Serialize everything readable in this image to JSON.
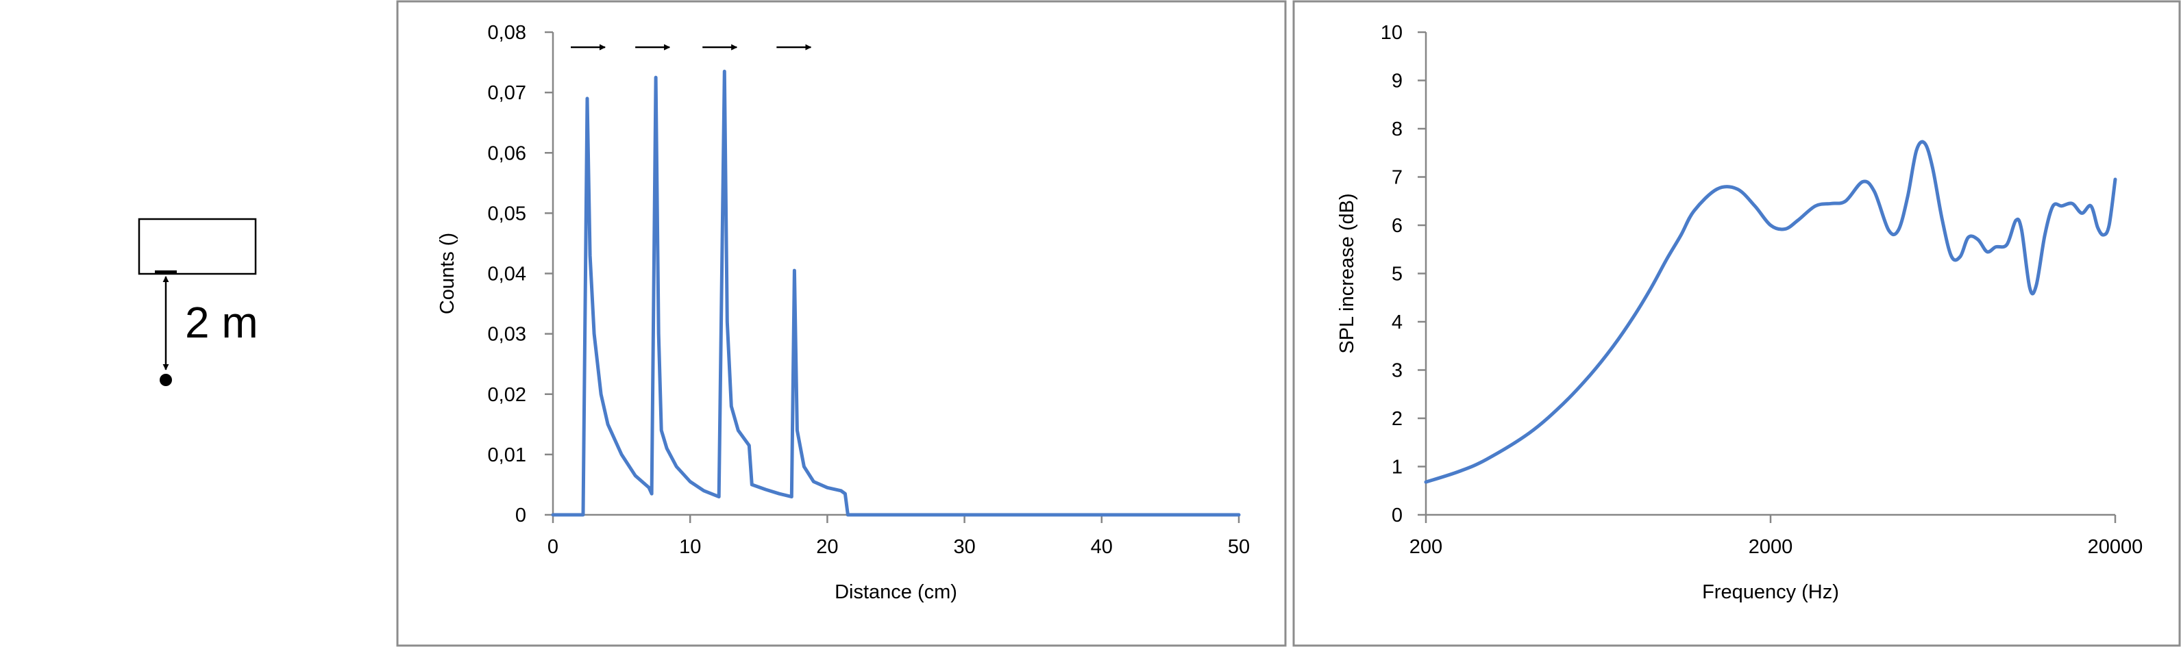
{
  "diagram": {
    "distance_label": "2 m"
  },
  "chart_data": [
    {
      "type": "line",
      "title": "",
      "xlabel": "Distance (cm)",
      "ylabel": "Counts ()",
      "xlim": [
        0,
        50
      ],
      "ylim": [
        0,
        0.08
      ],
      "x_ticks": [
        0,
        10,
        20,
        30,
        40,
        50
      ],
      "x_tick_labels": [
        "0",
        "10",
        "20",
        "30",
        "40",
        "50"
      ],
      "y_ticks": [
        0,
        0.01,
        0.02,
        0.03,
        0.04,
        0.05,
        0.06,
        0.07,
        0.08
      ],
      "y_tick_labels": [
        "0",
        "0,01",
        "0,02",
        "0,03",
        "0,04",
        "0,05",
        "0,06",
        "0,07",
        "0,08"
      ],
      "grid": false,
      "legend": "none",
      "color": "#4a7cc9",
      "annotations": [
        {
          "type": "arrow-right",
          "x": [
            1.3,
            3.8
          ],
          "y": 0.0775
        },
        {
          "type": "arrow-right",
          "x": [
            6.0,
            8.5
          ],
          "y": 0.0775
        },
        {
          "type": "arrow-right",
          "x": [
            10.9,
            13.4
          ],
          "y": 0.0775
        },
        {
          "type": "arrow-right",
          "x": [
            16.3,
            18.8
          ],
          "y": 0.0775
        }
      ],
      "series": [
        {
          "values": [
            [
              0,
              0
            ],
            [
              2.2,
              0
            ],
            [
              2.5,
              0.069
            ],
            [
              2.7,
              0.043
            ],
            [
              3.0,
              0.03
            ],
            [
              3.5,
              0.02
            ],
            [
              4.0,
              0.015
            ],
            [
              5.0,
              0.01
            ],
            [
              6.0,
              0.0065
            ],
            [
              7.0,
              0.0045
            ],
            [
              7.2,
              0.0035
            ],
            [
              7.5,
              0.0725
            ],
            [
              7.7,
              0.03
            ],
            [
              7.9,
              0.014
            ],
            [
              8.3,
              0.011
            ],
            [
              9.0,
              0.008
            ],
            [
              10.0,
              0.0055
            ],
            [
              11.0,
              0.004
            ],
            [
              12.1,
              0.003
            ],
            [
              12.5,
              0.0735
            ],
            [
              12.7,
              0.032
            ],
            [
              13.0,
              0.018
            ],
            [
              13.5,
              0.014
            ],
            [
              14.3,
              0.0115
            ],
            [
              14.5,
              0.005
            ],
            [
              15.5,
              0.0042
            ],
            [
              16.5,
              0.0035
            ],
            [
              17.4,
              0.003
            ],
            [
              17.6,
              0.0405
            ],
            [
              17.8,
              0.014
            ],
            [
              18.3,
              0.008
            ],
            [
              19.0,
              0.0055
            ],
            [
              20.0,
              0.0045
            ],
            [
              21.0,
              0.004
            ],
            [
              21.3,
              0.0035
            ],
            [
              21.5,
              0
            ],
            [
              50,
              0
            ]
          ]
        }
      ]
    },
    {
      "type": "line",
      "title": "",
      "xlabel": "Frequency (Hz)",
      "ylabel": "SPL increase (dB)",
      "x_scale": "log",
      "xlim": [
        200,
        20000
      ],
      "ylim": [
        0,
        10
      ],
      "x_ticks": [
        200,
        2000,
        20000
      ],
      "x_tick_labels": [
        "200",
        "2000",
        "20000"
      ],
      "y_ticks": [
        0,
        1,
        2,
        3,
        4,
        5,
        6,
        7,
        8,
        9,
        10
      ],
      "y_tick_labels": [
        "0",
        "1",
        "2",
        "3",
        "4",
        "5",
        "6",
        "7",
        "8",
        "9",
        "10"
      ],
      "grid": false,
      "legend": "none",
      "color": "#4a7cc9",
      "series": [
        {
          "values": [
            [
              200,
              0.68
            ],
            [
              250,
              0.9
            ],
            [
              300,
              1.15
            ],
            [
              400,
              1.7
            ],
            [
              500,
              2.3
            ],
            [
              600,
              2.9
            ],
            [
              700,
              3.5
            ],
            [
              800,
              4.1
            ],
            [
              900,
              4.7
            ],
            [
              1000,
              5.3
            ],
            [
              1100,
              5.8
            ],
            [
              1200,
              6.3
            ],
            [
              1400,
              6.75
            ],
            [
              1600,
              6.75
            ],
            [
              1800,
              6.4
            ],
            [
              2000,
              6.0
            ],
            [
              2200,
              5.92
            ],
            [
              2400,
              6.1
            ],
            [
              2700,
              6.4
            ],
            [
              3000,
              6.45
            ],
            [
              3300,
              6.5
            ],
            [
              3700,
              6.9
            ],
            [
              4000,
              6.7
            ],
            [
              4400,
              5.9
            ],
            [
              4700,
              5.9
            ],
            [
              5000,
              6.6
            ],
            [
              5300,
              7.55
            ],
            [
              5600,
              7.7
            ],
            [
              5900,
              7.2
            ],
            [
              6300,
              6.1
            ],
            [
              6700,
              5.35
            ],
            [
              7100,
              5.35
            ],
            [
              7500,
              5.75
            ],
            [
              8000,
              5.7
            ],
            [
              8500,
              5.45
            ],
            [
              9000,
              5.55
            ],
            [
              9700,
              5.6
            ],
            [
              10300,
              6.1
            ],
            [
              10700,
              5.9
            ],
            [
              11300,
              4.7
            ],
            [
              11800,
              4.75
            ],
            [
              12500,
              5.8
            ],
            [
              13200,
              6.4
            ],
            [
              14000,
              6.4
            ],
            [
              15000,
              6.45
            ],
            [
              16000,
              6.25
            ],
            [
              17000,
              6.4
            ],
            [
              17800,
              5.95
            ],
            [
              18500,
              5.8
            ],
            [
              19200,
              6.0
            ],
            [
              20000,
              6.95
            ]
          ]
        }
      ]
    }
  ]
}
